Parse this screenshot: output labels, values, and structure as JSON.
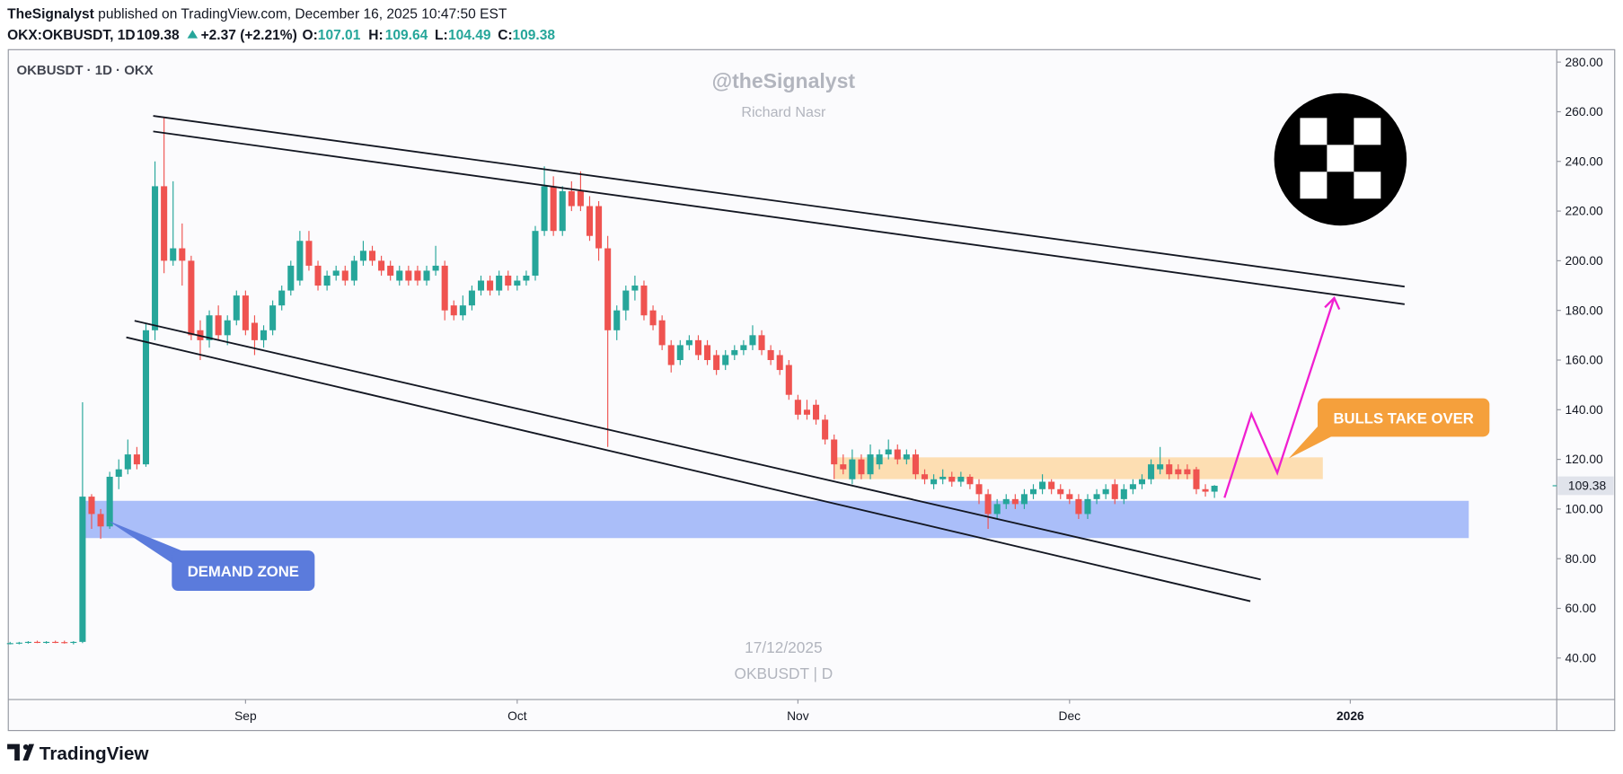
{
  "header": {
    "author": "TheSignalyst",
    "published": "published on TradingView.com, December 16, 2025 10:47:50 EST",
    "symbol": "OKX:OKBUSDT, 1D",
    "change": "+2.37 (+2.21%)",
    "ohlc_labels": [
      "O:",
      "H:",
      "L:",
      "C:"
    ]
  },
  "brand": "TradingView",
  "chart_data": {
    "type": "candlestick",
    "title": "OKBUSDT · 1D · OKX",
    "watermarks": [
      "@theSignalyst",
      "Richard Nasr",
      "17/12/2025",
      "OKBUSDT | D"
    ],
    "annotations": [
      "DEMAND ZONE",
      "BULLS TAKE OVER"
    ],
    "up_color": "#26a69a",
    "down_color": "#ef5350",
    "xlim": [
      -0.2,
      170.8
    ],
    "xticks": [
      {
        "value": 26,
        "label": "Sep"
      },
      {
        "value": 56,
        "label": "Oct"
      },
      {
        "value": 87,
        "label": "Nov"
      },
      {
        "value": 117,
        "label": "Dec"
      },
      {
        "value": 148,
        "label": "2026"
      }
    ],
    "ylim": [
      23.3,
      285
    ],
    "yticks": [
      {
        "value": 40,
        "label": "40.00"
      },
      {
        "value": 60,
        "label": "60.00"
      },
      {
        "value": 80,
        "label": "80.00"
      },
      {
        "value": 100,
        "label": "100.00"
      },
      {
        "value": 120,
        "label": "120.00"
      },
      {
        "value": 140,
        "label": "140.00"
      },
      {
        "value": 160,
        "label": "160.00"
      },
      {
        "value": 180,
        "label": "180.00"
      },
      {
        "value": 200,
        "label": "200.00"
      },
      {
        "value": 220,
        "label": "220.00"
      },
      {
        "value": 240,
        "label": "240.00"
      },
      {
        "value": 260,
        "label": "260.00"
      },
      {
        "value": 280,
        "label": "280.00"
      }
    ],
    "x": [
      0,
      1,
      2,
      3,
      4,
      5,
      6,
      7,
      8,
      9,
      10,
      11,
      12,
      13,
      14,
      15,
      16,
      17,
      18,
      19,
      20,
      21,
      22,
      23,
      24,
      25,
      26,
      27,
      28,
      29,
      30,
      31,
      32,
      33,
      34,
      35,
      36,
      37,
      38,
      39,
      40,
      41,
      42,
      43,
      44,
      45,
      46,
      47,
      48,
      49,
      50,
      51,
      52,
      53,
      54,
      55,
      56,
      57,
      58,
      59,
      60,
      61,
      62,
      63,
      64,
      65,
      66,
      67,
      68,
      69,
      70,
      71,
      72,
      73,
      74,
      75,
      76,
      77,
      78,
      79,
      80,
      81,
      82,
      83,
      84,
      85,
      86,
      87,
      88,
      89,
      90,
      91,
      92,
      93,
      94,
      95,
      96,
      97,
      98,
      99,
      100,
      101,
      102,
      103,
      104,
      105,
      106,
      107,
      108,
      109,
      110,
      111,
      112,
      113,
      114,
      115,
      116,
      117,
      118,
      119,
      120,
      121,
      122,
      123,
      124,
      125,
      126,
      127,
      128,
      129,
      130,
      131,
      132,
      133
    ],
    "open": [
      46,
      46,
      46.2,
      46.5,
      46.3,
      46.5,
      46.4,
      46.2,
      46.5,
      105,
      98,
      93,
      113,
      116,
      122,
      118,
      172,
      230,
      200,
      205,
      200,
      172,
      168,
      178,
      170,
      176,
      186,
      175,
      168,
      172,
      182,
      188,
      192,
      208,
      198,
      190,
      194,
      196,
      192,
      200,
      204,
      200,
      198,
      192,
      196,
      196,
      192,
      196,
      198,
      182,
      178,
      182,
      188,
      192,
      188,
      194,
      190,
      192,
      194,
      212,
      230,
      212,
      228,
      228,
      222,
      222,
      205,
      172,
      180,
      188,
      190,
      180,
      176,
      166,
      160,
      166,
      168,
      166,
      162,
      158,
      162,
      164,
      166,
      170,
      164,
      162,
      158,
      144,
      140,
      142,
      136,
      128,
      118,
      112,
      120,
      114,
      118,
      122,
      124,
      120,
      122,
      114,
      110,
      112,
      113,
      111,
      113,
      110,
      106,
      98,
      102,
      104,
      102,
      106,
      108,
      111,
      108,
      106,
      104,
      98,
      104,
      106,
      110,
      104,
      108,
      110,
      112,
      116,
      118,
      116,
      116,
      116,
      108,
      107.01
    ],
    "high": [
      46.5,
      46.5,
      46.8,
      47,
      46.8,
      47,
      47,
      46.8,
      143,
      106,
      100,
      115,
      120,
      128,
      125,
      175,
      240,
      258,
      232,
      215,
      202,
      176,
      180,
      182,
      178,
      188,
      188,
      178,
      174,
      184,
      190,
      200,
      212,
      212,
      200,
      196,
      198,
      198,
      202,
      208,
      206,
      202,
      200,
      198,
      198,
      198,
      198,
      206,
      200,
      184,
      186,
      190,
      194,
      194,
      196,
      196,
      194,
      196,
      214,
      238,
      234,
      230,
      232,
      236,
      226,
      224,
      210,
      182,
      190,
      194,
      192,
      182,
      178,
      168,
      168,
      170,
      170,
      168,
      164,
      164,
      166,
      168,
      174,
      172,
      166,
      164,
      160,
      146,
      144,
      144,
      138,
      130,
      122,
      124,
      122,
      126,
      124,
      128,
      126,
      124,
      124,
      116,
      114,
      116,
      115,
      115,
      114,
      112,
      108,
      104,
      106,
      106,
      108,
      110,
      114,
      112,
      110,
      108,
      106,
      106,
      108,
      110,
      112,
      110,
      112,
      114,
      120,
      125,
      120,
      118,
      118,
      117,
      110,
      109.64
    ],
    "low": [
      45.5,
      45.5,
      45.8,
      46,
      45.8,
      46,
      45.8,
      45.5,
      46,
      92,
      88,
      92,
      108,
      114,
      116,
      117,
      168,
      195,
      198,
      190,
      168,
      160,
      165,
      168,
      166,
      174,
      170,
      162,
      165,
      170,
      180,
      186,
      190,
      196,
      188,
      188,
      192,
      190,
      190,
      198,
      198,
      194,
      192,
      190,
      190,
      190,
      190,
      194,
      176,
      176,
      176,
      180,
      186,
      186,
      186,
      188,
      188,
      190,
      192,
      210,
      210,
      210,
      220,
      220,
      208,
      200,
      125,
      168,
      176,
      184,
      176,
      172,
      164,
      155,
      158,
      164,
      160,
      158,
      154,
      156,
      160,
      162,
      164,
      162,
      158,
      154,
      144,
      136,
      136,
      134,
      126,
      112,
      114,
      110,
      112,
      112,
      116,
      120,
      118,
      118,
      112,
      110,
      108,
      110,
      109,
      109,
      108,
      102,
      92,
      96,
      100,
      100,
      100,
      104,
      106,
      106,
      104,
      102,
      96,
      96,
      102,
      104,
      102,
      102,
      106,
      108,
      110,
      114,
      112,
      112,
      112,
      106,
      105,
      104.49
    ],
    "close": [
      46,
      46.2,
      46.5,
      46.3,
      46.5,
      46.4,
      46.2,
      46.5,
      105,
      98,
      93,
      113,
      116,
      122,
      118,
      172,
      230,
      200,
      205,
      200,
      170,
      168,
      178,
      170,
      176,
      186,
      172,
      168,
      172,
      182,
      188,
      198,
      208,
      198,
      190,
      194,
      196,
      192,
      200,
      204,
      200,
      196,
      194,
      196,
      192,
      192,
      196,
      198,
      180,
      178,
      182,
      188,
      192,
      188,
      194,
      190,
      192,
      194,
      212,
      230,
      212,
      228,
      222,
      222,
      210,
      205,
      172,
      180,
      188,
      190,
      178,
      174,
      166,
      158,
      166,
      168,
      162,
      160,
      156,
      162,
      164,
      166,
      170,
      164,
      160,
      156,
      146,
      138,
      138,
      136,
      128,
      118,
      116,
      120,
      114,
      122,
      122,
      124,
      120,
      122,
      114,
      112,
      112,
      113,
      111,
      113,
      110,
      106,
      98,
      102,
      104,
      102,
      106,
      108,
      111,
      108,
      106,
      104,
      98,
      104,
      106,
      108,
      104,
      108,
      110,
      112,
      118,
      118,
      114,
      114,
      114,
      108,
      107,
      109.38
    ]
  }
}
